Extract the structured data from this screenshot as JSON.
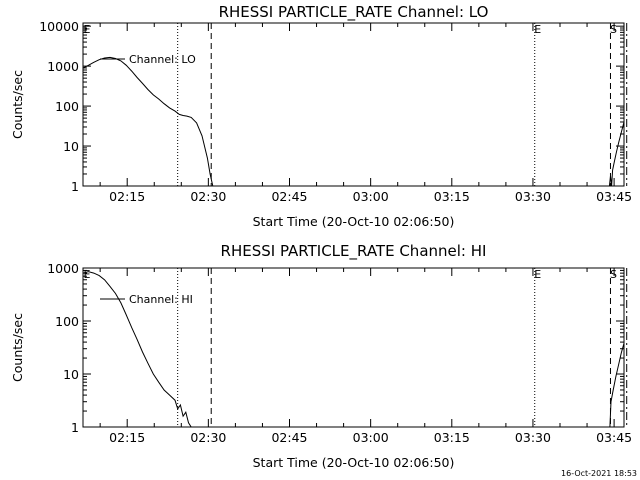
{
  "footer": {
    "timestamp": "16-Oct-2021 18:53"
  },
  "chart_data": [
    {
      "type": "line",
      "title": "RHESSI PARTICLE_RATE Channel: LO",
      "xlabel": "Start Time (20-Oct-10 02:06:50)",
      "ylabel": "Counts/sec",
      "xscale": "time (minutes after 02:06:50)",
      "yscale": "log",
      "xlim": [
        0,
        100
      ],
      "ylim": [
        1,
        12000
      ],
      "x_ticks": [
        8.17,
        23.17,
        38.17,
        53.17,
        68.17,
        83.17,
        98.17
      ],
      "x_tick_labels": [
        "02:15",
        "02:30",
        "02:45",
        "03:00",
        "03:15",
        "03:30",
        "03:45"
      ],
      "y_ticks": [
        1,
        10,
        100,
        1000,
        10000
      ],
      "y_tick_labels": [
        "1",
        "10",
        "100",
        "1000",
        "10000"
      ],
      "legend": "Channel: LO",
      "legend_position": "top-left",
      "series": [
        {
          "name": "Channel: LO",
          "segments": [
            {
              "x": [
                0,
                1,
                2,
                3,
                4,
                5,
                6,
                7,
                8,
                9,
                10,
                11,
                12,
                13,
                14,
                15,
                16,
                17,
                17.8,
                18.5,
                19.2,
                20,
                21,
                22,
                23,
                23.5,
                24
              ],
              "y": [
                900,
                1050,
                1250,
                1450,
                1600,
                1650,
                1550,
                1350,
                1050,
                750,
                520,
                370,
                260,
                190,
                150,
                115,
                90,
                75,
                62,
                58,
                56,
                52,
                38,
                18,
                5,
                2,
                1
              ]
            },
            {
              "x": [
                97.3,
                97.5,
                97.7,
                97.9,
                98.2,
                98.6,
                99.0,
                99.5,
                100
              ],
              "y": [
                1,
                1.8,
                1,
                2.5,
                4,
                7,
                12,
                22,
                40
              ]
            }
          ]
        }
      ],
      "vertical_lines": [
        {
          "x": 17.5,
          "style": "dotted",
          "label": ""
        },
        {
          "x": 23.7,
          "style": "dashed",
          "label": ""
        },
        {
          "x": 83.5,
          "style": "dotted",
          "label": "E"
        },
        {
          "x": 97.5,
          "style": "dashed",
          "label": "S"
        },
        {
          "x": 100.5,
          "style": "dashdot",
          "label": ""
        }
      ],
      "corner_label": "E"
    },
    {
      "type": "line",
      "title": "RHESSI PARTICLE_RATE Channel: HI",
      "xlabel": "Start Time (20-Oct-10 02:06:50)",
      "ylabel": "Counts/sec",
      "xscale": "time (minutes after 02:06:50)",
      "yscale": "log",
      "xlim": [
        0,
        100
      ],
      "ylim": [
        1,
        1000
      ],
      "x_ticks": [
        8.17,
        23.17,
        38.17,
        53.17,
        68.17,
        83.17,
        98.17
      ],
      "x_tick_labels": [
        "02:15",
        "02:30",
        "02:45",
        "03:00",
        "03:15",
        "03:30",
        "03:45"
      ],
      "y_ticks": [
        1,
        10,
        100,
        1000
      ],
      "y_tick_labels": [
        "1",
        "10",
        "100",
        "1000"
      ],
      "legend": "Channel: HI",
      "legend_position": "top-left",
      "series": [
        {
          "name": "Channel: HI",
          "segments": [
            {
              "x": [
                0,
                1,
                2,
                3,
                4,
                5,
                6,
                7,
                8,
                9,
                10,
                11,
                12,
                13,
                14,
                15,
                16,
                17,
                17.5,
                18,
                18.5,
                19,
                19.5,
                20
              ],
              "y": [
                800,
                850,
                800,
                720,
                600,
                450,
                330,
                220,
                130,
                75,
                45,
                26,
                16,
                10,
                7,
                5,
                4,
                3.2,
                2.2,
                2.6,
                1.6,
                1.9,
                1.2,
                1
              ]
            },
            {
              "x": [
                97.4,
                97.6,
                98.0,
                98.5,
                99.0,
                99.5,
                100
              ],
              "y": [
                1,
                3,
                5,
                9,
                15,
                25,
                38
              ]
            }
          ]
        }
      ],
      "vertical_lines": [
        {
          "x": 17.5,
          "style": "dotted",
          "label": ""
        },
        {
          "x": 23.7,
          "style": "dashed",
          "label": ""
        },
        {
          "x": 83.5,
          "style": "dotted",
          "label": "E"
        },
        {
          "x": 97.5,
          "style": "dashed",
          "label": "S"
        },
        {
          "x": 100.5,
          "style": "dashdot",
          "label": ""
        }
      ],
      "corner_label": "E"
    }
  ]
}
